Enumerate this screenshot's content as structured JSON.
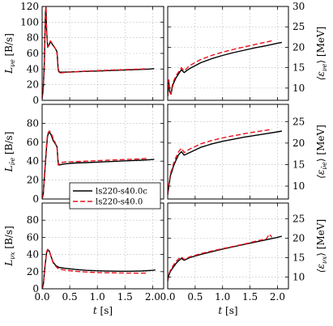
{
  "chart_data": [
    {
      "type": "line",
      "panel": "top-left",
      "ylabel": "L_{ν_e} [B/s]",
      "ylabel_parts": {
        "sym": "L",
        "sub": "νe",
        "unit": " [B/s]"
      },
      "xlim": [
        0.0,
        2.2
      ],
      "ylim": [
        0,
        120
      ],
      "xticks": [],
      "yticks": [
        "0",
        "20",
        "40",
        "60",
        "80",
        "100",
        "120"
      ],
      "grid": true,
      "series": [
        {
          "name": "ls220-s40.0c",
          "color": "#000000",
          "dashed": false,
          "x": [
            0.0,
            0.02,
            0.04,
            0.05,
            0.06,
            0.07,
            0.08,
            0.1,
            0.12,
            0.15,
            0.18,
            0.2,
            0.24,
            0.27,
            0.29,
            0.31,
            0.4,
            0.6,
            0.8,
            1.0,
            1.2,
            1.4,
            1.6,
            1.8,
            1.95,
            2.03
          ],
          "y": [
            2,
            15,
            45,
            80,
            112,
            120,
            90,
            68,
            70,
            75,
            72,
            70,
            66,
            62,
            40,
            36,
            36,
            36.5,
            37,
            37.5,
            38,
            38.5,
            39,
            39.5,
            40,
            40.5
          ]
        },
        {
          "name": "ls220-s40.0",
          "color": "#e8121c",
          "dashed": true,
          "x": [
            0.0,
            0.02,
            0.04,
            0.05,
            0.06,
            0.07,
            0.08,
            0.1,
            0.12,
            0.15,
            0.18,
            0.2,
            0.24,
            0.27,
            0.29,
            0.31,
            0.4,
            0.6,
            0.8,
            1.0,
            1.2,
            1.4,
            1.6,
            1.8,
            1.9
          ],
          "y": [
            2,
            18,
            50,
            85,
            115,
            120,
            88,
            68,
            71,
            76,
            73,
            71,
            66,
            60,
            38,
            35,
            35.5,
            36.5,
            37.5,
            38,
            38.5,
            39,
            39.5,
            40,
            40.5
          ]
        }
      ]
    },
    {
      "type": "line",
      "panel": "top-right",
      "ylabel": "⟨ε_{ν_e}⟩ [MeV]",
      "ylabel_parts": {
        "sym": "⟨ε",
        "sub": "νe",
        "unit": "⟩ [MeV]"
      },
      "xlim": [
        0.0,
        2.2
      ],
      "ylim": [
        7,
        30
      ],
      "xticks": [],
      "yticks": [
        "10",
        "15",
        "20",
        "25",
        "30"
      ],
      "grid": true,
      "series": [
        {
          "name": "ls220-s40.0c",
          "color": "#000000",
          "dashed": false,
          "x": [
            0.0,
            0.02,
            0.04,
            0.06,
            0.08,
            0.1,
            0.15,
            0.2,
            0.25,
            0.3,
            0.4,
            0.6,
            0.8,
            1.0,
            1.2,
            1.4,
            1.6,
            1.8,
            2.0,
            2.08
          ],
          "y": [
            8,
            11.5,
            9,
            8.5,
            10,
            11,
            12.5,
            13.5,
            14.5,
            13.8,
            14.8,
            16.2,
            17.2,
            18,
            18.7,
            19.3,
            19.9,
            20.4,
            21,
            21.2
          ]
        },
        {
          "name": "ls220-s40.0",
          "color": "#e8121c",
          "dashed": true,
          "x": [
            0.0,
            0.02,
            0.04,
            0.06,
            0.08,
            0.1,
            0.15,
            0.2,
            0.25,
            0.3,
            0.4,
            0.6,
            0.8,
            1.0,
            1.2,
            1.4,
            1.6,
            1.8,
            1.9
          ],
          "y": [
            8,
            12,
            9,
            8.5,
            10.5,
            11.5,
            13,
            14,
            15,
            14.2,
            15.5,
            17,
            18,
            18.8,
            19.5,
            20.1,
            20.7,
            21.3,
            21.6
          ]
        }
      ]
    },
    {
      "type": "line",
      "panel": "middle-left",
      "ylabel": "L_{ν̄_e} [B/s]",
      "ylabel_parts": {
        "sym": "L",
        "sub": "ν̄e",
        "unit": " [B/s]"
      },
      "xlim": [
        0.0,
        2.2
      ],
      "ylim": [
        0,
        100
      ],
      "xticks": [],
      "yticks": [
        "0",
        "20",
        "40",
        "60",
        "80"
      ],
      "grid": true,
      "series": [
        {
          "name": "ls220-s40.0c",
          "color": "#000000",
          "dashed": false,
          "x": [
            0.0,
            0.02,
            0.05,
            0.08,
            0.1,
            0.13,
            0.16,
            0.2,
            0.24,
            0.27,
            0.29,
            0.31,
            0.4,
            0.6,
            0.8,
            1.0,
            1.2,
            1.4,
            1.6,
            1.8,
            1.95,
            2.03
          ],
          "y": [
            0,
            5,
            30,
            55,
            67,
            71,
            68,
            62,
            58,
            55,
            38,
            36,
            37,
            38,
            38.5,
            39,
            39.5,
            40,
            40.5,
            41,
            41.5,
            42
          ]
        },
        {
          "name": "ls220-s40.0",
          "color": "#e8121c",
          "dashed": true,
          "x": [
            0.0,
            0.02,
            0.05,
            0.08,
            0.1,
            0.13,
            0.16,
            0.2,
            0.24,
            0.27,
            0.29,
            0.31,
            0.4,
            0.6,
            0.8,
            1.0,
            1.2,
            1.4,
            1.6,
            1.8,
            1.9
          ],
          "y": [
            0,
            6,
            32,
            58,
            69,
            72,
            70,
            64,
            59,
            54,
            36,
            38,
            39,
            39.5,
            40,
            40.5,
            41,
            41.5,
            42,
            42.5,
            43
          ]
        }
      ]
    },
    {
      "type": "line",
      "panel": "middle-right",
      "ylabel": "⟨ε_{ν̄_e}⟩ [MeV]",
      "ylabel_parts": {
        "sym": "⟨ε",
        "sub": "ν̄e",
        "unit": "⟩ [MeV]"
      },
      "xlim": [
        0.0,
        2.2
      ],
      "ylim": [
        7,
        29
      ],
      "xticks": [],
      "yticks": [
        "10",
        "15",
        "20",
        "25"
      ],
      "grid": true,
      "series": [
        {
          "name": "ls220-s40.0c",
          "color": "#000000",
          "dashed": false,
          "x": [
            0.0,
            0.02,
            0.05,
            0.08,
            0.1,
            0.15,
            0.2,
            0.25,
            0.3,
            0.4,
            0.6,
            0.8,
            1.0,
            1.2,
            1.4,
            1.6,
            1.8,
            2.0,
            2.08
          ],
          "y": [
            8,
            10,
            12.5,
            13.5,
            14.5,
            16,
            17.3,
            18,
            17.2,
            17.8,
            19,
            19.8,
            20.4,
            20.9,
            21.4,
            21.8,
            22.2,
            22.6,
            22.8
          ]
        },
        {
          "name": "ls220-s40.0",
          "color": "#e8121c",
          "dashed": true,
          "x": [
            0.0,
            0.02,
            0.05,
            0.08,
            0.1,
            0.15,
            0.2,
            0.25,
            0.3,
            0.4,
            0.6,
            0.8,
            1.0,
            1.2,
            1.4,
            1.6,
            1.8,
            1.9
          ],
          "y": [
            8,
            10.5,
            13,
            14,
            15,
            16.7,
            18,
            18.8,
            17.8,
            18.6,
            19.8,
            20.6,
            21.2,
            21.7,
            22.2,
            22.6,
            23,
            23.2
          ]
        }
      ]
    },
    {
      "type": "line",
      "panel": "bottom-left",
      "ylabel": "L_{ν_x} [B/s]",
      "ylabel_parts": {
        "sym": "L",
        "sub": "νx",
        "unit": " [B/s]"
      },
      "xlim": [
        0.0,
        2.2
      ],
      "ylim": [
        0,
        100
      ],
      "xticks": [
        "0.0",
        "0.5",
        "1.0",
        "1.5",
        "2.0"
      ],
      "yticks": [
        "0",
        "20",
        "40",
        "60",
        "80"
      ],
      "xlabel": "t [s]",
      "xlabel_parts": {
        "sym": "t",
        "unit": " [s]"
      },
      "grid": true,
      "series": [
        {
          "name": "ls220-s40.0c",
          "color": "#000000",
          "dashed": false,
          "x": [
            0.0,
            0.02,
            0.05,
            0.08,
            0.1,
            0.13,
            0.16,
            0.2,
            0.25,
            0.3,
            0.4,
            0.6,
            0.8,
            1.0,
            1.2,
            1.4,
            1.6,
            1.8,
            2.0,
            2.05
          ],
          "y": [
            0,
            4,
            25,
            42,
            45,
            44,
            38,
            31,
            27,
            25,
            24,
            22.5,
            21.5,
            21,
            20.7,
            20.5,
            20.5,
            20.8,
            21.5,
            22
          ]
        },
        {
          "name": "ls220-s40.0",
          "color": "#e8121c",
          "dashed": true,
          "x": [
            0.0,
            0.02,
            0.05,
            0.08,
            0.1,
            0.13,
            0.16,
            0.2,
            0.25,
            0.3,
            0.4,
            0.6,
            0.8,
            1.0,
            1.2,
            1.4,
            1.6,
            1.8,
            1.9
          ],
          "y": [
            0,
            4,
            26,
            43,
            46,
            44.5,
            38,
            30,
            26,
            23,
            22,
            20.5,
            19.5,
            19,
            18.7,
            18.5,
            18.3,
            18.2,
            18.3
          ]
        }
      ]
    },
    {
      "type": "line",
      "panel": "bottom-right",
      "ylabel": "⟨ε_{ν_x}⟩ [MeV]",
      "ylabel_parts": {
        "sym": "⟨ε",
        "sub": "νx",
        "unit": "⟩ [MeV]"
      },
      "xlim": [
        0.0,
        2.2
      ],
      "ylim": [
        7,
        29
      ],
      "xticks": [
        "0.0",
        "0.5",
        "1.0",
        "1.5",
        "2.0"
      ],
      "yticks": [
        "10",
        "15",
        "20",
        "25"
      ],
      "xlabel": "t [s]",
      "xlabel_parts": {
        "sym": "t",
        "unit": " [s]"
      },
      "grid": true,
      "series": [
        {
          "name": "ls220-s40.0c",
          "color": "#000000",
          "dashed": false,
          "x": [
            0.0,
            0.02,
            0.05,
            0.1,
            0.15,
            0.2,
            0.25,
            0.3,
            0.4,
            0.6,
            0.8,
            1.0,
            1.2,
            1.4,
            1.6,
            1.8,
            2.0,
            2.08
          ],
          "y": [
            9,
            10.5,
            11.5,
            12.5,
            13.5,
            14.2,
            14.8,
            14.3,
            15,
            15.8,
            16.5,
            17.2,
            17.8,
            18.4,
            19,
            19.6,
            20.2,
            20.5
          ]
        },
        {
          "name": "ls220-s40.0",
          "color": "#e8121c",
          "dashed": true,
          "x": [
            0.0,
            0.02,
            0.05,
            0.1,
            0.15,
            0.2,
            0.25,
            0.3,
            0.4,
            0.6,
            0.8,
            1.0,
            1.2,
            1.4,
            1.6,
            1.8,
            1.85,
            1.9
          ],
          "y": [
            9,
            10.8,
            11.8,
            13,
            14,
            14.7,
            15.2,
            14.5,
            15.2,
            16,
            16.7,
            17.3,
            17.9,
            18.5,
            19.2,
            19.8,
            21,
            20.2
          ]
        }
      ]
    }
  ],
  "legend": {
    "placement": "middle-left",
    "entries": [
      {
        "label": "ls220-s40.0c",
        "color": "#000000",
        "dashed": false
      },
      {
        "label": "ls220-s40.0",
        "color": "#e8121c",
        "dashed": true
      }
    ]
  }
}
